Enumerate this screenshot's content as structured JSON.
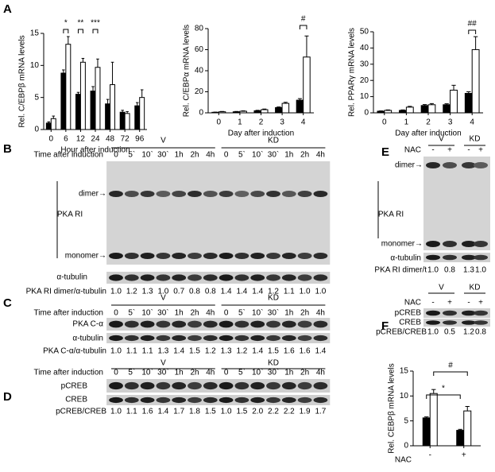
{
  "chart_data": [
    {
      "type": "bar",
      "panel": "A",
      "ylabel": "Rel. C/EBPβ mRNA levels",
      "xlabel": "Hour after induction",
      "categories": [
        "0",
        "6",
        "12",
        "24",
        "48",
        "72",
        "96"
      ],
      "series": [
        {
          "color": "#000000",
          "values": [
            1,
            8.8,
            5.5,
            6,
            4,
            2.7,
            3.7
          ],
          "errors": [
            0.2,
            0.5,
            0.3,
            0.7,
            0.7,
            0.3,
            0.5
          ]
        },
        {
          "color": "#ffffff",
          "values": [
            1.7,
            13.3,
            10.5,
            9.7,
            7,
            2.5,
            5
          ],
          "errors": [
            0.4,
            1.2,
            0.6,
            1.3,
            3.5,
            0.3,
            1.2
          ]
        }
      ],
      "ylim": [
        0,
        15
      ],
      "yticks": [
        0,
        5,
        10,
        15
      ],
      "annotations": [
        "*",
        "**",
        "***"
      ]
    },
    {
      "type": "bar",
      "ylabel": "Rel. C/EBPα mRNA levels",
      "xlabel": "Day after induction",
      "categories": [
        "0",
        "1",
        "2",
        "3",
        "4"
      ],
      "series": [
        {
          "color": "#000000",
          "values": [
            0.5,
            1,
            2,
            5,
            12
          ],
          "errors": [
            0.2,
            0.3,
            0.4,
            0.6,
            1.5
          ]
        },
        {
          "color": "#ffffff",
          "values": [
            1,
            1.5,
            3,
            9,
            53
          ],
          "errors": [
            0.3,
            0.4,
            0.6,
            1,
            20
          ]
        }
      ],
      "ylim": [
        0,
        80
      ],
      "yticks": [
        0,
        20,
        40,
        60,
        80
      ],
      "annotations": [
        "#"
      ]
    },
    {
      "type": "bar",
      "ylabel": "Rel. PPARγ mRNA levels",
      "xlabel": "Day after induction",
      "categories": [
        "0",
        "1",
        "2",
        "3",
        "4"
      ],
      "series": [
        {
          "color": "#000000",
          "values": [
            1,
            1.5,
            4.5,
            5,
            12
          ],
          "errors": [
            0.2,
            0.3,
            0.6,
            0.6,
            1
          ]
        },
        {
          "color": "#ffffff",
          "values": [
            1.5,
            3.5,
            5,
            14,
            39
          ],
          "errors": [
            0.3,
            0.5,
            0.7,
            3,
            8
          ]
        }
      ],
      "ylim": [
        0,
        50
      ],
      "yticks": [
        0,
        10,
        20,
        30,
        40,
        50
      ],
      "annotations": [
        "##"
      ]
    },
    {
      "type": "bar",
      "panel": "F",
      "ylabel": "Rel. CEBPβ mRNA levels",
      "xlabel": "NAC",
      "categories": [
        "-",
        "+"
      ],
      "series": [
        {
          "color": "#000000",
          "values": [
            5.6,
            3.1
          ],
          "errors": [
            0.2,
            0.2
          ]
        },
        {
          "color": "#ffffff",
          "values": [
            10.5,
            7
          ],
          "errors": [
            0.8,
            0.9
          ]
        }
      ],
      "ylim": [
        0,
        15
      ],
      "yticks": [
        0,
        5,
        10,
        15
      ],
      "annotations": [
        "*",
        "#"
      ]
    }
  ],
  "blots": [
    {
      "panel": "B",
      "groups": [
        "V",
        "KD"
      ],
      "header": "Time after induction",
      "lanes": [
        "0",
        "5`",
        "10`",
        "30`",
        "1h",
        "2h",
        "4h",
        "0",
        "5`",
        "10`",
        "30`",
        "1h",
        "2h",
        "4h"
      ],
      "rows": [
        {
          "label": "PKA RI",
          "markers": [
            "dimer→",
            "monomer→"
          ]
        },
        {
          "label": "α-tubulin"
        }
      ],
      "ratio_label": "PKA RI dimer/α-tubulin",
      "ratios": [
        "1.0",
        "1.2",
        "1.3",
        "1.0",
        "0.7",
        "0.8",
        "0.8",
        "1.4",
        "1.4",
        "1.4",
        "1.2",
        "1.1",
        "1.0",
        "1.0"
      ]
    },
    {
      "panel": "C",
      "groups": [
        "V",
        "KD"
      ],
      "header": "Time after induction",
      "lanes": [
        "0",
        "5`",
        "10`",
        "30`",
        "1h",
        "2h",
        "4h",
        "0",
        "5`",
        "10`",
        "30`",
        "1h",
        "2h",
        "4h"
      ],
      "rows": [
        {
          "label": "PKA C-α"
        },
        {
          "label": "α-tubulin"
        }
      ],
      "ratio_label": "PKA C-α/α-tubulin",
      "ratios": [
        "1.0",
        "1.1",
        "1.1",
        "1.3",
        "1.4",
        "1.5",
        "1.2",
        "1.3",
        "1.2",
        "1.4",
        "1.5",
        "1.6",
        "1.6",
        "1.4"
      ]
    },
    {
      "panel": "D",
      "groups": [
        "V",
        "KD"
      ],
      "header": "Time after induction",
      "lanes": [
        "0",
        "5`",
        "10`",
        "30`",
        "1h",
        "2h",
        "4h",
        "0",
        "5`",
        "10`",
        "30`",
        "1h",
        "2h",
        "4h"
      ],
      "rows": [
        {
          "label": "pCREB"
        },
        {
          "label": "CREB"
        }
      ],
      "ratio_label": "pCREB/CREB",
      "ratios": [
        "1.0",
        "1.1",
        "1.6",
        "1.4",
        "1.7",
        "1.8",
        "1.5",
        "1.0",
        "1.5",
        "2.0",
        "2.2",
        "2.2",
        "1.9",
        "1.7"
      ]
    },
    {
      "panel": "E",
      "groups": [
        "V",
        "KD"
      ],
      "header": "NAC",
      "lanes": [
        "-",
        "+",
        "-",
        "+"
      ],
      "rows": [
        {
          "label": "PKA RI",
          "markers": [
            "dimer→",
            "monomer→"
          ]
        },
        {
          "label": "α-tubulin"
        }
      ],
      "ratio_label": "PKA RI dimer/t",
      "ratios": [
        "1.0",
        "0.8",
        "1.3",
        "1.0"
      ]
    },
    {
      "groups": [
        "V",
        "KD"
      ],
      "header": "NAC",
      "lanes": [
        "-",
        "+",
        "-",
        "+"
      ],
      "rows": [
        {
          "label": "pCREB"
        },
        {
          "label": "CREB"
        }
      ],
      "ratio_label": "pCREB/CREB",
      "ratios": [
        "1.0",
        "0.5",
        "1.2",
        "0.8"
      ]
    }
  ]
}
